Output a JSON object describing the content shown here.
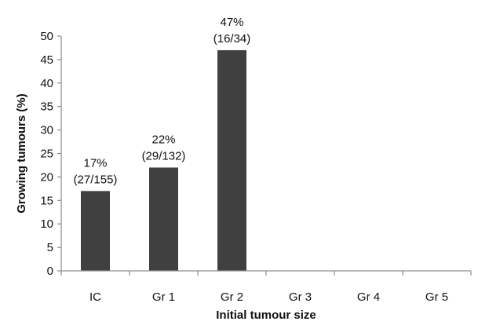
{
  "chart_data": {
    "type": "bar",
    "title": "",
    "xlabel": "Initial tumour size",
    "ylabel": "Growing tumours (%)",
    "categories": [
      "IC",
      "Gr 1",
      "Gr 2",
      "Gr 3",
      "Gr 4",
      "Gr 5"
    ],
    "values": [
      17,
      22,
      47,
      0,
      0,
      0
    ],
    "data_labels": [
      [
        "17%",
        "(27/155)"
      ],
      [
        "22%",
        "(29/132)"
      ],
      [
        "47%",
        "(16/34)"
      ],
      null,
      null,
      null
    ],
    "ylim": [
      0,
      50
    ],
    "yticks": [
      0,
      5,
      10,
      15,
      20,
      25,
      30,
      35,
      40,
      45,
      50
    ],
    "grid": false,
    "legend": "none",
    "bar_color": "#404040",
    "axis_color": "#8c8c8c"
  }
}
